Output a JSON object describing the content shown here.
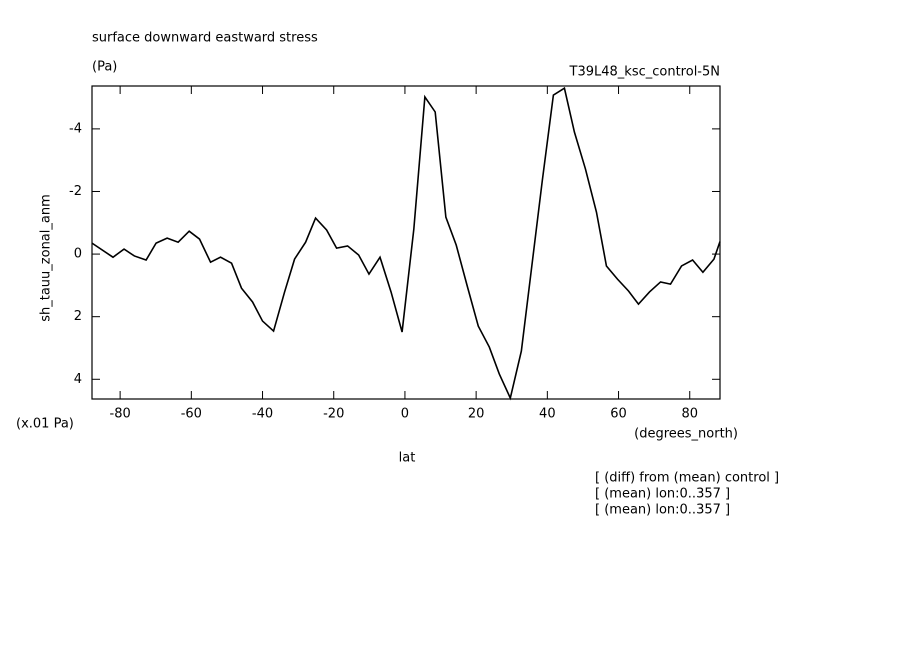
{
  "chart_data": {
    "type": "line",
    "title": "surface downward eastward stress",
    "subtitle": "(Pa)",
    "dataset_label": "T39L48_ksc_control-5N",
    "y_label": "sh_tauu_zonal_anm",
    "y_units": "(x.01 Pa)",
    "x_label": "lat",
    "x_units": "(degrees_north)",
    "notes": [
      "[ (diff) from (mean) control ]",
      "[ (mean) lon:0..357 ]",
      "[ (mean) lon:0..357 ]"
    ],
    "x": [
      -87.9,
      -82,
      -78.9,
      -76,
      -72.7,
      -69.9,
      -66.8,
      -63.7,
      -60.6,
      -57.7,
      -54.6,
      -51.8,
      -48.7,
      -45.9,
      -42.8,
      -40,
      -36.9,
      -33.8,
      -31,
      -27.9,
      -25.1,
      -22,
      -19.2,
      -16.1,
      -13,
      -10.1,
      -7,
      -3.9,
      -0.8,
      2.5,
      5.6,
      8.5,
      11.5,
      14.4,
      17.5,
      20.6,
      23.7,
      26.5,
      29.6,
      32.7,
      35.5,
      38.6,
      41.7,
      44.8,
      47.6,
      50.7,
      53.8,
      56.6,
      59.7,
      62.8,
      65.6,
      68.7,
      71.8,
      74.6,
      77.7,
      80.8,
      83.7,
      86.8,
      88.5
    ],
    "series": [
      {
        "color": "#000000",
        "values": [
          -0.35,
          0.1,
          -0.16,
          0.06,
          0.19,
          -0.35,
          -0.51,
          -0.38,
          -0.73,
          -0.48,
          0.26,
          0.1,
          0.29,
          1.09,
          1.53,
          2.14,
          2.46,
          1.21,
          0.16,
          -0.38,
          -1.15,
          -0.77,
          -0.19,
          -0.26,
          0.03,
          0.64,
          0.1,
          1.21,
          2.49,
          -0.8,
          -5.02,
          -4.54,
          -1.18,
          -0.29,
          1.02,
          2.3,
          2.97,
          3.83,
          4.6,
          3.1,
          0.51,
          -2.36,
          -5.08,
          -5.3,
          -3.9,
          -2.72,
          -1.34,
          0.38,
          0.8,
          1.18,
          1.6,
          1.21,
          0.89,
          0.96,
          0.38,
          0.19,
          0.58,
          0.16,
          -0.4
        ]
      }
    ],
    "xlim": [
      -87.9,
      88.5
    ],
    "ylim": [
      -5.37,
      4.63
    ],
    "y_reversed": true,
    "xticks": [
      -80,
      -60,
      -40,
      -20,
      0,
      20,
      40,
      60,
      80
    ],
    "yticks": [
      -4,
      -2,
      0,
      2,
      4
    ]
  }
}
